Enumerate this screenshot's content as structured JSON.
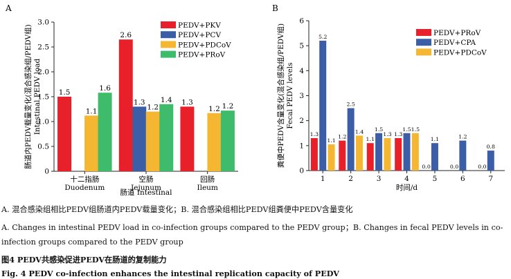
{
  "chart_data": [
    {
      "type": "bar",
      "panel_label": "A",
      "title": "",
      "ylabel_cn": "肠道内PEDV载量变化(混合感染组/PEDV组)",
      "ylabel_en": "Intestinal PEDV load",
      "xlabel": "肠道 Intestinal",
      "categories": [
        "十二指肠",
        "空肠",
        "回肠"
      ],
      "categories_en": [
        "Duodenum",
        "Jejunum",
        "Ileum"
      ],
      "ylim": [
        0,
        3.0
      ],
      "yticks": [
        0,
        0.5,
        1.0,
        1.5,
        2.0,
        2.5,
        3.0
      ],
      "ytick_labels": [
        "0",
        "0.5",
        "1.0",
        "1.5",
        "2.0",
        "2.5",
        "3.0"
      ],
      "legend_position": "top-right",
      "series": [
        {
          "name": "PEDV+PKV",
          "color": "#e8202a",
          "values": [
            1.5,
            2.65,
            1.3
          ],
          "labels": [
            "1.5",
            "2.6",
            "1.3"
          ]
        },
        {
          "name": "PEDV+PCV",
          "color": "#3b5ea6",
          "values": [
            null,
            1.3,
            null
          ],
          "labels": [
            "",
            "1.3",
            ""
          ]
        },
        {
          "name": "PEDV+PDCoV",
          "color": "#f5b731",
          "values": [
            1.12,
            1.2,
            1.17
          ],
          "labels": [
            "1.1",
            "1.2",
            "1.2"
          ]
        },
        {
          "name": "PEDV+PRoV",
          "color": "#3ebb6b",
          "values": [
            1.58,
            1.35,
            1.22
          ],
          "labels": [
            "1.6",
            "1.4",
            "1.2"
          ]
        }
      ]
    },
    {
      "type": "bar",
      "panel_label": "B",
      "title": "",
      "ylabel_cn": "粪便中PEDV含量变化(混合感染组/PEDV组)",
      "ylabel_en": "Fecal PEDV levels",
      "xlabel": "时间/d",
      "categories": [
        "1",
        "2",
        "3",
        "4",
        "5",
        "6",
        "7"
      ],
      "ylim": [
        0,
        6
      ],
      "yticks": [
        0,
        1,
        2,
        3,
        4,
        5,
        6
      ],
      "ytick_labels": [
        "0",
        "1",
        "2",
        "3",
        "4",
        "5",
        "6"
      ],
      "legend_position": "top-right",
      "series": [
        {
          "name": "PEDV+PRoV",
          "color": "#e8202a",
          "values": [
            1.3,
            1.2,
            1.1,
            1.3,
            0.0,
            0.0,
            0.0
          ],
          "labels": [
            "1.3",
            "1.2",
            "1.1",
            "1.3",
            "0.0",
            "0.0",
            "0.0"
          ]
        },
        {
          "name": "PEDV+CPA",
          "color": "#3b5ea6",
          "values": [
            5.2,
            2.5,
            1.5,
            1.5,
            1.1,
            1.2,
            0.8
          ],
          "labels": [
            "5.2",
            "2.5",
            "1.5",
            "1.5",
            "1.1",
            "1.2",
            "0.8"
          ]
        },
        {
          "name": "PEDV+PDCoV",
          "color": "#f5b731",
          "values": [
            1.05,
            1.4,
            1.3,
            1.5,
            null,
            null,
            null
          ],
          "labels": [
            "1.1",
            "1.4",
            "1.3",
            "1.5",
            "",
            "",
            ""
          ]
        }
      ]
    }
  ],
  "captions": {
    "panels_cn": "A. 混合感染组相比PEDV组肠道内PEDV载量变化；B. 混合感染组相比PEDV组粪便中PEDV含量变化",
    "panels_en_line1": "A. Changes in intestinal PEDV load in co-infection groups compared to the PEDV group；B. Changes in fecal PEDV levels in co-",
    "panels_en_line2": "infection groups compared to the PEDV group",
    "figure_cn": "图4   PEDV共感染促进PEDV在肠道的复制能力",
    "figure_en": "Fig. 4   PEDV co-infection enhances the intestinal replication capacity of PEDV"
  }
}
